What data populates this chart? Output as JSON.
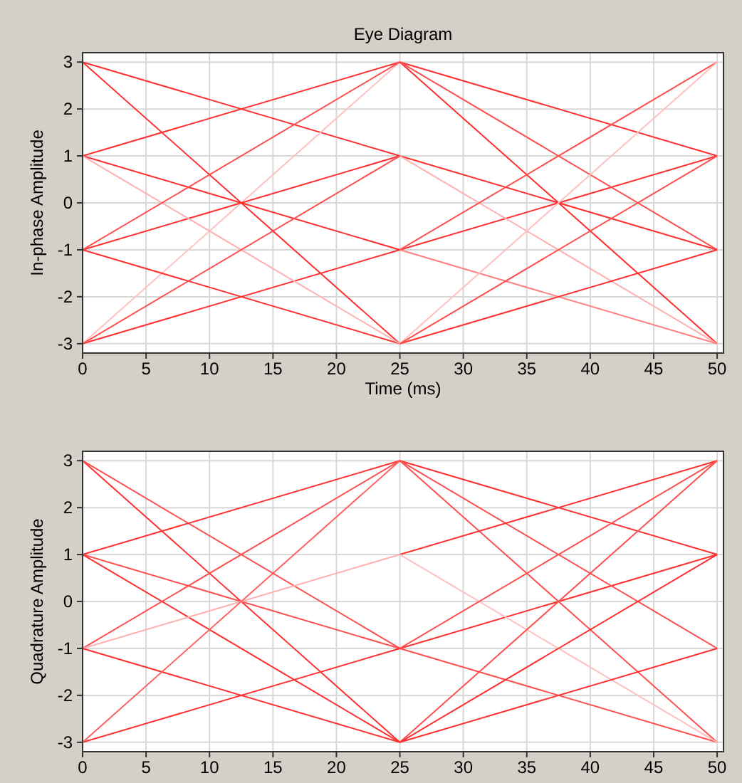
{
  "chart_data": [
    {
      "type": "line",
      "title": "Eye Diagram",
      "xlabel": "Time (ms)",
      "ylabel": "In-phase Amplitude",
      "xlim": [
        0,
        50.5
      ],
      "ylim": [
        -3.2,
        3.2
      ],
      "xticks": [
        0,
        5,
        10,
        15,
        20,
        25,
        30,
        35,
        40,
        45,
        50
      ],
      "yticks": [
        -3,
        -2,
        -1,
        0,
        1,
        2,
        3
      ],
      "grid": true,
      "series": [
        {
          "color": "#ff3030",
          "x": [
            0,
            25,
            50
          ],
          "values": [
            3,
            1,
            -1
          ]
        },
        {
          "color": "#ff3030",
          "x": [
            0,
            25
          ],
          "values": [
            1,
            3
          ]
        },
        {
          "color": "#ff3030",
          "x": [
            0,
            25
          ],
          "values": [
            3,
            -3
          ]
        },
        {
          "color": "#ffc0c0",
          "x": [
            0,
            25
          ],
          "values": [
            -3,
            3
          ]
        },
        {
          "color": "#ff3030",
          "x": [
            0,
            25
          ],
          "values": [
            1,
            -1
          ]
        },
        {
          "color": "#ff3030",
          "x": [
            0,
            25
          ],
          "values": [
            -1,
            1
          ]
        },
        {
          "color": "#ff3030",
          "x": [
            0,
            25
          ],
          "values": [
            -1,
            -3
          ]
        },
        {
          "color": "#ff3030",
          "x": [
            0,
            25,
            50
          ],
          "values": [
            -3,
            -1,
            1
          ]
        },
        {
          "color": "#ffb0b0",
          "x": [
            0,
            25
          ],
          "values": [
            1,
            -3
          ]
        },
        {
          "color": "#ff5050",
          "x": [
            0,
            25
          ],
          "values": [
            -1,
            3
          ]
        },
        {
          "color": "#ff5050",
          "x": [
            0,
            25
          ],
          "values": [
            -3,
            1
          ]
        },
        {
          "color": "#ff3030",
          "x": [
            25,
            50
          ],
          "values": [
            3,
            1
          ]
        },
        {
          "color": "#ff3030",
          "x": [
            25,
            50
          ],
          "values": [
            3,
            -3
          ]
        },
        {
          "color": "#ff5050",
          "x": [
            25,
            50
          ],
          "values": [
            3,
            -1
          ]
        },
        {
          "color": "#ffb0b0",
          "x": [
            25,
            50
          ],
          "values": [
            1,
            -3
          ]
        },
        {
          "color": "#ff5050",
          "x": [
            25,
            50
          ],
          "values": [
            -1,
            3
          ]
        },
        {
          "color": "#ff8080",
          "x": [
            25,
            50
          ],
          "values": [
            -1,
            -3
          ]
        },
        {
          "color": "#ff3030",
          "x": [
            25,
            50
          ],
          "values": [
            -3,
            -1
          ]
        },
        {
          "color": "#ffc0c0",
          "x": [
            25,
            50
          ],
          "values": [
            -3,
            3
          ]
        },
        {
          "color": "#ff5050",
          "x": [
            25,
            50
          ],
          "values": [
            -3,
            1
          ]
        }
      ]
    },
    {
      "type": "line",
      "ylabel": "Quadrature Amplitude",
      "xlim": [
        0,
        50.5
      ],
      "ylim": [
        -3.2,
        3.2
      ],
      "xticks": [
        0,
        5,
        10,
        15,
        20,
        25,
        30,
        35,
        40,
        45,
        50
      ],
      "yticks": [
        -3,
        -2,
        -1,
        0,
        1,
        2,
        3
      ],
      "grid": true,
      "series": [
        {
          "color": "#ff3030",
          "x": [
            0,
            25
          ],
          "values": [
            3,
            -3
          ]
        },
        {
          "color": "#ff5050",
          "x": [
            0,
            25
          ],
          "values": [
            3,
            -1
          ]
        },
        {
          "color": "#ff3030",
          "x": [
            0,
            25
          ],
          "values": [
            1,
            3
          ]
        },
        {
          "color": "#ff5050",
          "x": [
            0,
            25,
            50
          ],
          "values": [
            1,
            -1,
            -3
          ]
        },
        {
          "color": "#ff3030",
          "x": [
            0,
            25
          ],
          "values": [
            1,
            -3
          ]
        },
        {
          "color": "#ff5050",
          "x": [
            0,
            25
          ],
          "values": [
            -1,
            3
          ]
        },
        {
          "color": "#ffb0b0",
          "x": [
            0,
            25
          ],
          "values": [
            -1,
            1
          ]
        },
        {
          "color": "#ff3030",
          "x": [
            0,
            25
          ],
          "values": [
            -1,
            -3
          ]
        },
        {
          "color": "#ff3030",
          "x": [
            0,
            25,
            50
          ],
          "values": [
            -3,
            -1,
            1
          ]
        },
        {
          "color": "#ff6060",
          "x": [
            0,
            25
          ],
          "values": [
            -3,
            3
          ]
        },
        {
          "color": "#ff3030",
          "x": [
            25,
            50
          ],
          "values": [
            3,
            1
          ]
        },
        {
          "color": "#ff5050",
          "x": [
            25,
            50
          ],
          "values": [
            3,
            -3
          ]
        },
        {
          "color": "#ff5050",
          "x": [
            25,
            50
          ],
          "values": [
            3,
            -1
          ]
        },
        {
          "color": "#ff3030",
          "x": [
            25,
            50
          ],
          "values": [
            1,
            3
          ]
        },
        {
          "color": "#ffc0c0",
          "x": [
            25,
            50
          ],
          "values": [
            1,
            -3
          ]
        },
        {
          "color": "#ff5050",
          "x": [
            25,
            50
          ],
          "values": [
            -1,
            3
          ]
        },
        {
          "color": "#ff3030",
          "x": [
            25,
            50
          ],
          "values": [
            -3,
            -1
          ]
        },
        {
          "color": "#ff5050",
          "x": [
            25,
            50
          ],
          "values": [
            -3,
            3
          ]
        },
        {
          "color": "#ff3030",
          "x": [
            25,
            50
          ],
          "values": [
            -3,
            1
          ]
        }
      ]
    }
  ]
}
